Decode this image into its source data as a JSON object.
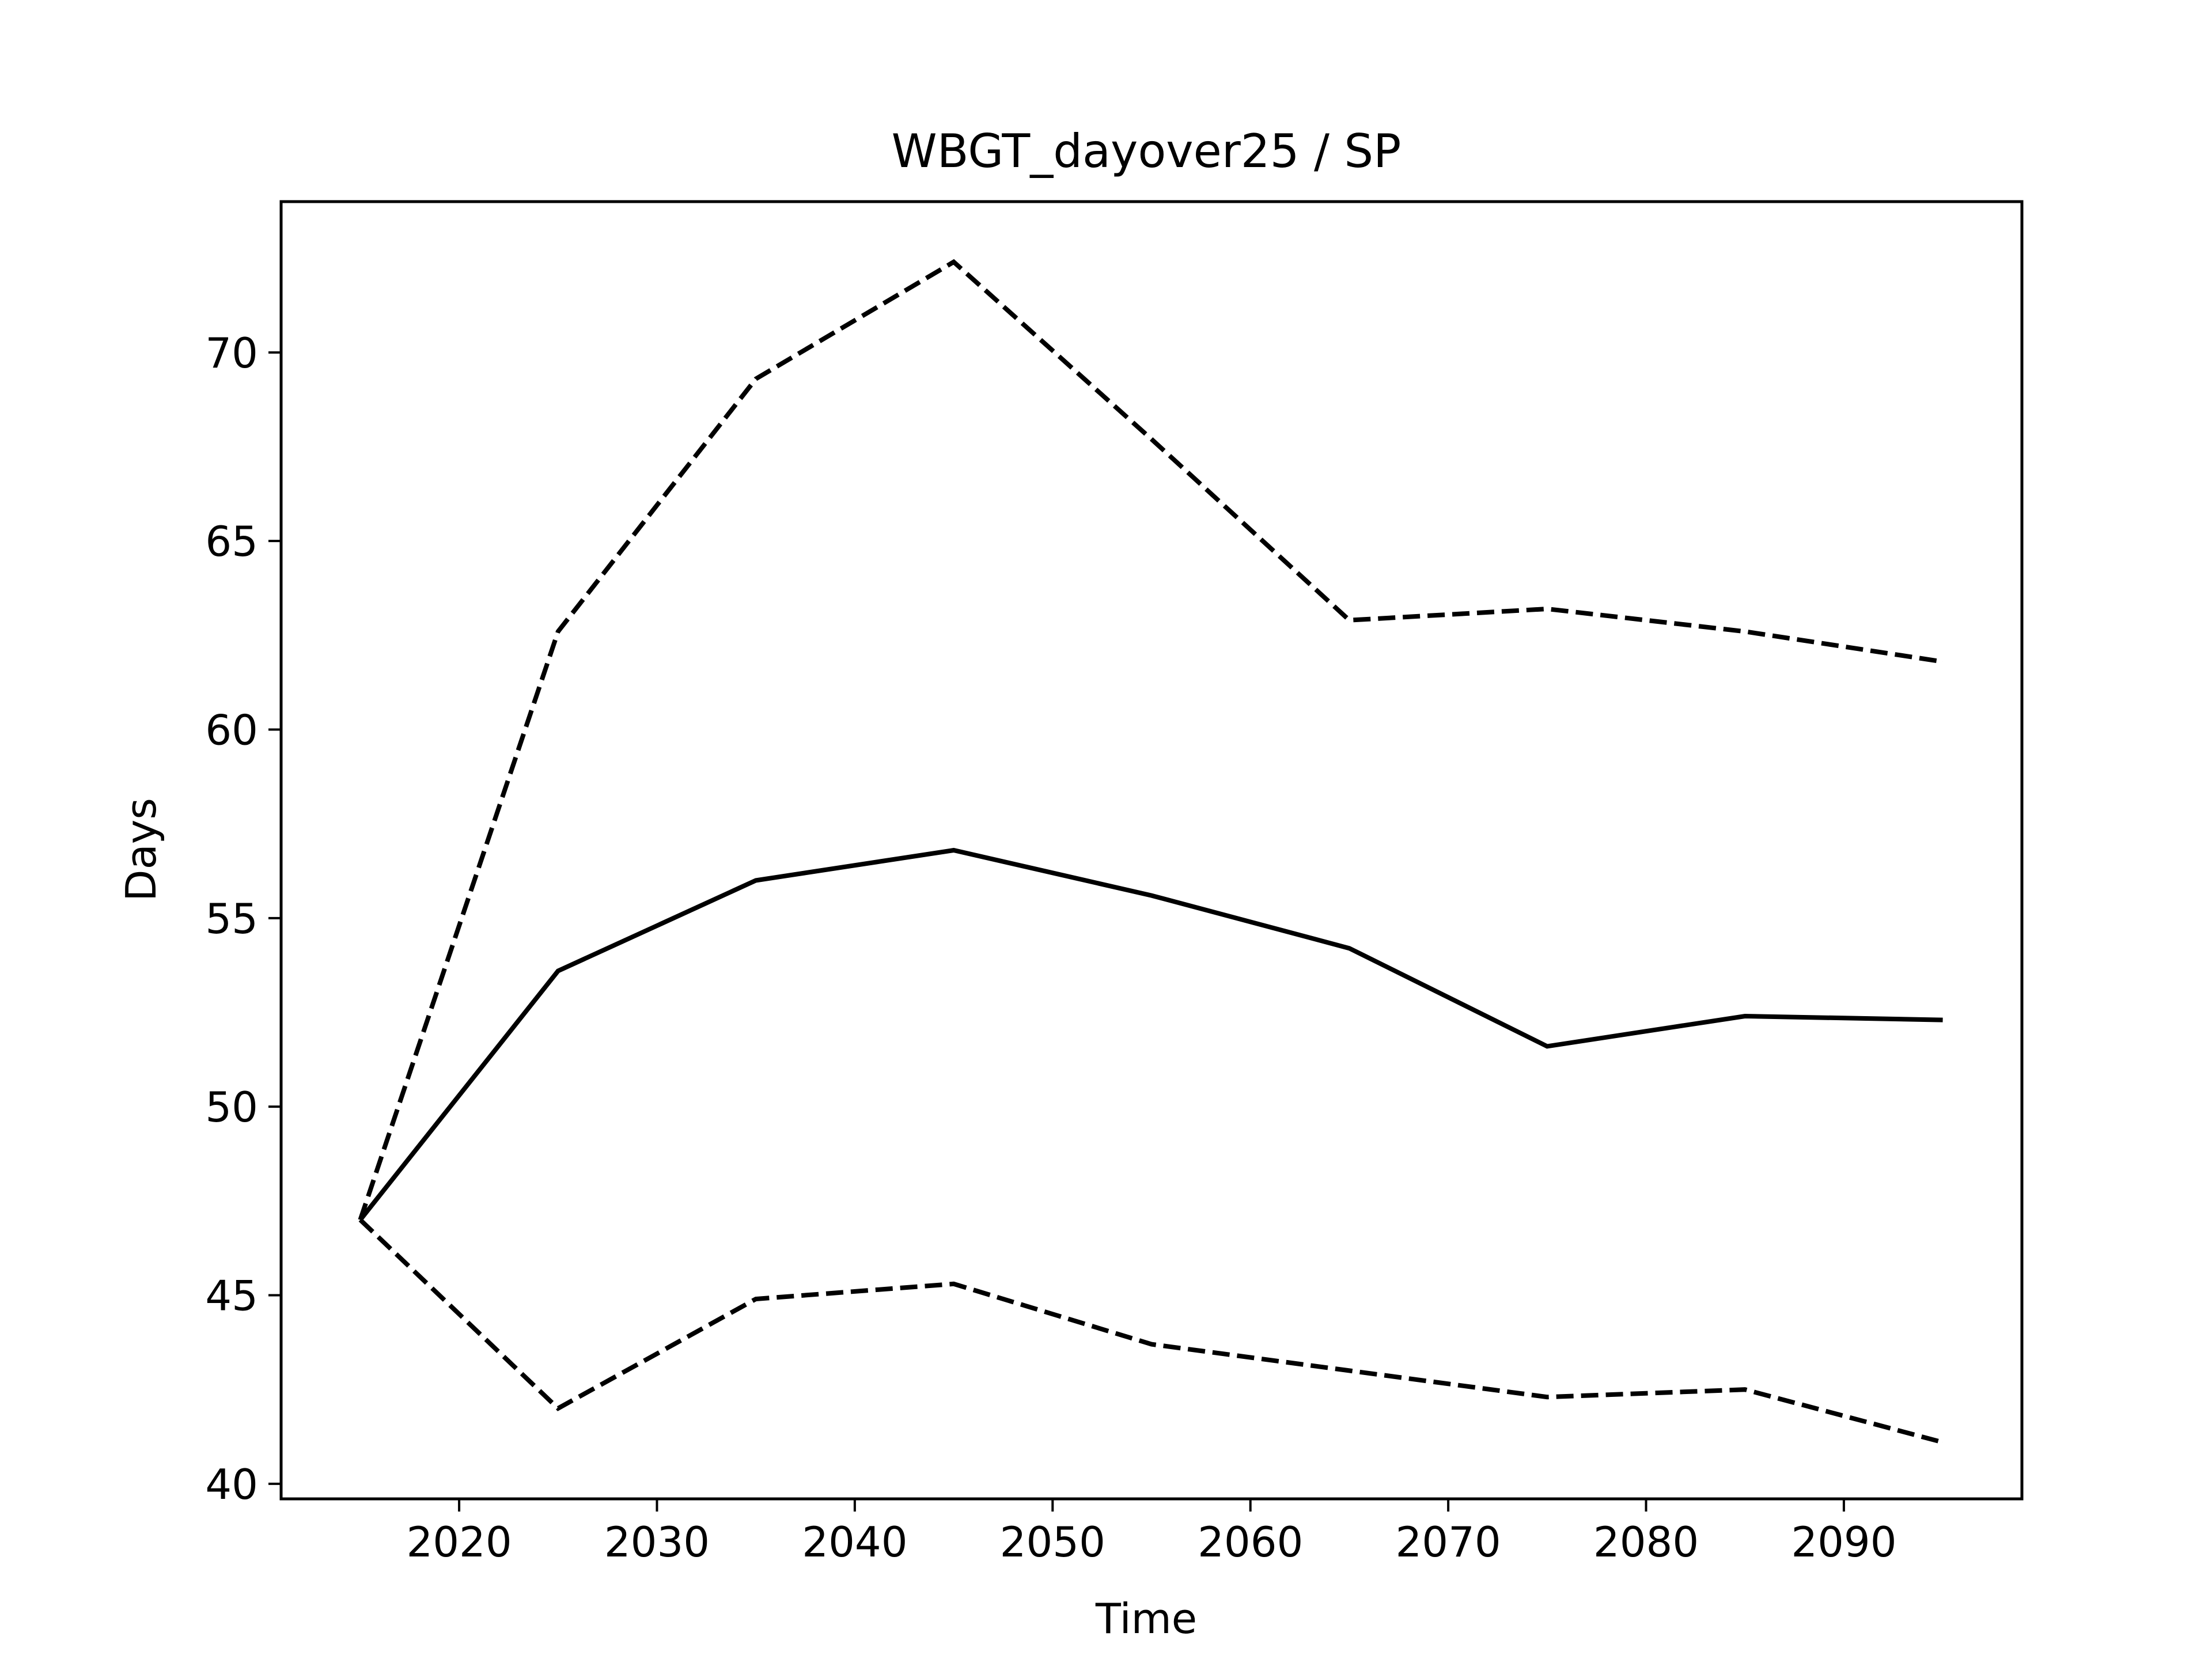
{
  "chart_data": {
    "type": "line",
    "title": "WBGT_dayover25 / SP",
    "xlabel": "Time",
    "ylabel": "Days",
    "x": [
      2015,
      2025,
      2035,
      2045,
      2055,
      2065,
      2075,
      2085,
      2095
    ],
    "xlim": [
      2011,
      2099
    ],
    "ylim": [
      39.6,
      74.0
    ],
    "xticks": [
      2020,
      2030,
      2040,
      2050,
      2060,
      2070,
      2080,
      2090
    ],
    "yticks": [
      40,
      45,
      50,
      55,
      60,
      65,
      70
    ],
    "grid": false,
    "series": [
      {
        "style": "solid",
        "color": "#000000",
        "values": [
          47.0,
          53.6,
          56.0,
          56.8,
          55.6,
          54.2,
          51.6,
          52.4,
          52.3
        ]
      },
      {
        "style": "dashed",
        "color": "#000000",
        "values": [
          47.0,
          62.6,
          69.3,
          72.4,
          67.7,
          62.9,
          63.2,
          62.6,
          61.8
        ]
      },
      {
        "style": "dashed",
        "color": "#000000",
        "values": [
          47.0,
          42.0,
          44.9,
          45.3,
          43.7,
          43.0,
          42.3,
          42.5,
          41.1
        ]
      }
    ]
  }
}
